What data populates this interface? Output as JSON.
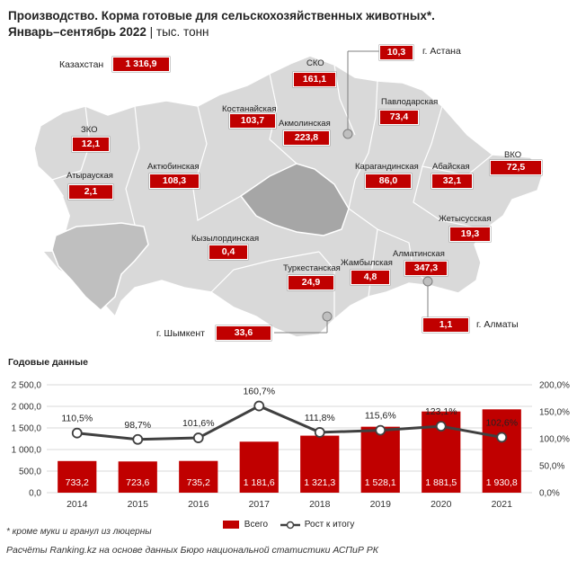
{
  "header": {
    "title": "Производство. Корма готовые для сельскохозяйственных животных*.",
    "period": "Январь–сентябрь 2022",
    "separator": "|",
    "unit": "тыс. тонн"
  },
  "map": {
    "total": {
      "label": "Казахстан",
      "value": "1 316,9"
    },
    "regions": [
      {
        "id": "zko",
        "label": "ЗКО",
        "value": "12,1"
      },
      {
        "id": "atyrau",
        "label": "Атырауская",
        "value": "2,1"
      },
      {
        "id": "aktobe",
        "label": "Актюбинская",
        "value": "108,3"
      },
      {
        "id": "kostanay",
        "label": "Костанайская",
        "value": "103,7"
      },
      {
        "id": "sko",
        "label": "СКО",
        "value": "161,1"
      },
      {
        "id": "akmola",
        "label": "Акмолинская",
        "value": "223,8"
      },
      {
        "id": "pavlodar",
        "label": "Павлодарская",
        "value": "73,4"
      },
      {
        "id": "vko",
        "label": "ВКО",
        "value": "72,5"
      },
      {
        "id": "karaganda",
        "label": "Карагандинская",
        "value": "86,0"
      },
      {
        "id": "abay",
        "label": "Абайская",
        "value": "32,1"
      },
      {
        "id": "zhetysu",
        "label": "Жетысусская",
        "value": "19,3"
      },
      {
        "id": "kyzylorda",
        "label": "Кызылординская",
        "value": "0,4"
      },
      {
        "id": "turkestan",
        "label": "Туркестанская",
        "value": "24,9"
      },
      {
        "id": "zhambyl",
        "label": "Жамбылская",
        "value": "4,8"
      },
      {
        "id": "almaty_reg",
        "label": "Алматинская",
        "value": "347,3"
      }
    ],
    "cities": [
      {
        "id": "astana",
        "label": "г. Астана",
        "value": "10,3"
      },
      {
        "id": "almaty",
        "label": "г. Алматы",
        "value": "1,1"
      },
      {
        "id": "shymkent",
        "label": "г. Шымкент",
        "value": "33,6"
      }
    ]
  },
  "annual_title": "Годовые данные",
  "chart_data": {
    "type": "bar",
    "categories": [
      "2014",
      "2015",
      "2016",
      "2017",
      "2018",
      "2019",
      "2020",
      "2021"
    ],
    "series": [
      {
        "name": "Всего",
        "type": "bar",
        "values": [
          733.2,
          723.6,
          735.2,
          1181.6,
          1321.3,
          1528.1,
          1881.5,
          1930.8
        ],
        "labels": [
          "733,2",
          "723,6",
          "735,2",
          "1 181,6",
          "1 321,3",
          "1 528,1",
          "1 881,5",
          "1 930,8"
        ]
      },
      {
        "name": "Рост к итогу",
        "type": "line",
        "axis": "right",
        "values": [
          110.5,
          98.7,
          101.6,
          160.7,
          111.8,
          115.6,
          123.1,
          102.6
        ],
        "labels": [
          "110,5%",
          "98,7%",
          "101,6%",
          "160,7%",
          "111,8%",
          "115,6%",
          "123,1%",
          "102,6%"
        ]
      }
    ],
    "ylim_left": [
      0,
      2500
    ],
    "yticks_left": [
      "0,0",
      "500,0",
      "1 000,0",
      "1 500,0",
      "2 000,0",
      "2 500,0"
    ],
    "ylim_right": [
      0,
      200
    ],
    "yticks_right": [
      "0,0%",
      "50,0%",
      "100,0%",
      "150,0%",
      "200,0%"
    ],
    "grid": true,
    "legend_position": "bottom",
    "colors": {
      "bar": "#c00000",
      "line": "#404040",
      "marker_fill": "#ffffff",
      "grid": "#d9d9d9"
    }
  },
  "footnote": "* кроме муки и гранул из люцерны",
  "source": "Расчёты Ranking.kz на основе данных Бюро национальной статистики АСПиР РК"
}
